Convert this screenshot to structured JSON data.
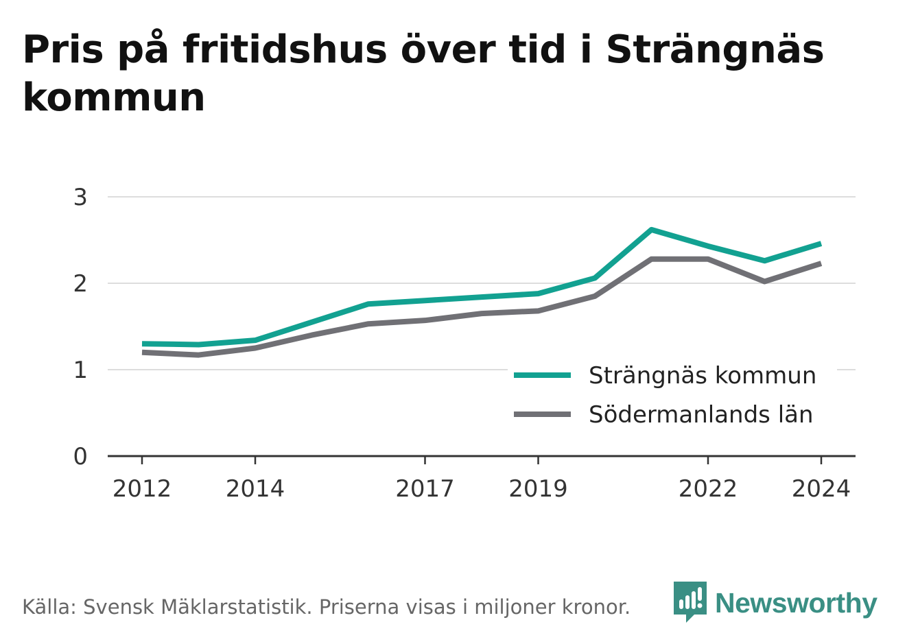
{
  "title": "Pris på fritidshus över tid i Strängnäs kommun",
  "source": "Källa: Svensk Mäklarstatistik. Priserna visas i miljoner kronor.",
  "brand": {
    "name": "Newsworthy",
    "icon": "newsworthy-logo-icon",
    "color": "#3a8f84"
  },
  "chart_data": {
    "type": "line",
    "title": "Pris på fritidshus över tid i Strängnäs kommun",
    "x": [
      2012,
      2013,
      2014,
      2015,
      2016,
      2017,
      2018,
      2019,
      2020,
      2021,
      2022,
      2023,
      2024
    ],
    "x_tick_labels": [
      "2012",
      "2014",
      "2017",
      "2019",
      "2022",
      "2024"
    ],
    "y_tick_labels": [
      "0",
      "1",
      "2",
      "3"
    ],
    "ylim": [
      0,
      3
    ],
    "xlim": [
      2012,
      2024
    ],
    "grid": true,
    "legend_position": "bottom-right",
    "series": [
      {
        "name": "Strängnäs kommun",
        "color": "#12a191",
        "values": [
          1.3,
          1.29,
          1.34,
          1.55,
          1.76,
          1.8,
          1.84,
          1.88,
          2.06,
          2.62,
          2.43,
          2.26,
          2.46
        ]
      },
      {
        "name": "Södermanlands län",
        "color": "#707075",
        "values": [
          1.2,
          1.17,
          1.25,
          1.4,
          1.53,
          1.57,
          1.65,
          1.68,
          1.85,
          2.28,
          2.28,
          2.02,
          2.23
        ]
      }
    ]
  }
}
